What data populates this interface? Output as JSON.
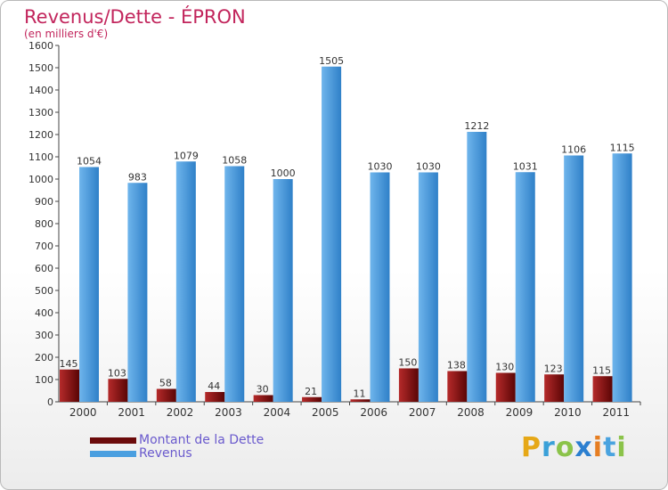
{
  "title": "Revenus/Dette - ÉPRON",
  "subtitle": "(en milliers d'€)",
  "logo_text": "Proxiti",
  "legend": [
    {
      "label": "Montant de la Dette",
      "color": "#6b0a0a"
    },
    {
      "label": "Revenus",
      "color": "#4a9fe0"
    }
  ],
  "colors": {
    "debt_light": "#b52a2a",
    "debt_dark": "#5a0505",
    "revenue_light": "#6fb5ec",
    "revenue_dark": "#2f80c8",
    "title": "#c2255c",
    "legend_text": "#6a5acd"
  },
  "chart_data": {
    "type": "bar",
    "categories": [
      "2000",
      "2001",
      "2002",
      "2003",
      "2004",
      "2005",
      "2006",
      "2007",
      "2008",
      "2009",
      "2010",
      "2011"
    ],
    "series": [
      {
        "name": "Montant de la Dette",
        "values": [
          145,
          103,
          58,
          44,
          30,
          21,
          11,
          150,
          138,
          130,
          123,
          115
        ]
      },
      {
        "name": "Revenus",
        "values": [
          1054,
          983,
          1079,
          1058,
          1000,
          1505,
          1030,
          1030,
          1212,
          1031,
          1106,
          1115
        ]
      }
    ],
    "ylim": [
      0,
      1600
    ],
    "yticks": [
      0,
      100,
      200,
      300,
      400,
      500,
      600,
      700,
      800,
      900,
      1000,
      1100,
      1200,
      1300,
      1400,
      1500,
      1600
    ],
    "grid": false,
    "legend_position": "bottom-left"
  }
}
